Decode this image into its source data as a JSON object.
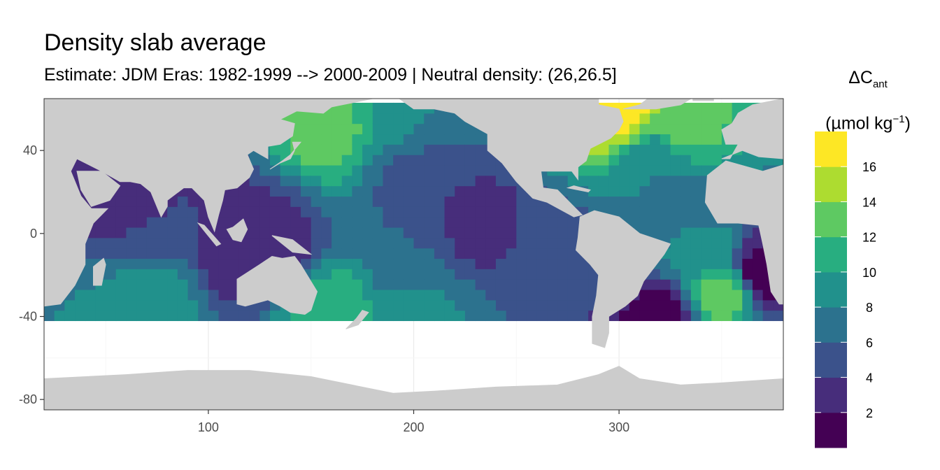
{
  "title": "Density slab average",
  "subtitle": "Estimate: JDM Eras: 1982-1999 --> 2000-2009 | Neutral density: (26,26.5]",
  "legend": {
    "title_symbol": "ΔC",
    "title_sub": "ant",
    "unit_prefix": "(µmol kg",
    "unit_sup": "−1",
    "unit_suffix": ")",
    "breaks": [
      0,
      2,
      4,
      6,
      8,
      10,
      12,
      14,
      16,
      18
    ],
    "labels": [
      "2",
      "4",
      "6",
      "8",
      "10",
      "12",
      "14",
      "16"
    ],
    "colors": [
      "#440154",
      "#472d7b",
      "#3b528b",
      "#2c728e",
      "#21918c",
      "#28ae80",
      "#5ec962",
      "#addc30",
      "#fde725"
    ]
  },
  "chart_data": {
    "type": "heatmap",
    "xlim": [
      20,
      380
    ],
    "ylim": [
      -85,
      65
    ],
    "x_ticks": [
      100,
      200,
      300
    ],
    "x_tick_labels": [
      "100",
      "200",
      "300"
    ],
    "y_ticks": [
      40,
      0,
      -40,
      -80
    ],
    "y_tick_labels": [
      "40",
      "0",
      "-40",
      "-80"
    ],
    "grid": true,
    "land_color": "#cccccc",
    "data_coverage_lat": [
      -42,
      63
    ],
    "regions": [
      {
        "lon": 60,
        "lat": 12,
        "value": 2.5
      },
      {
        "lon": 115,
        "lat": -8,
        "value": 2.0
      },
      {
        "lon": 130,
        "lat": -4,
        "value": 3.0
      },
      {
        "lon": 70,
        "lat": -5,
        "value": 5.0
      },
      {
        "lon": 70,
        "lat": -25,
        "value": 9.0
      },
      {
        "lon": 70,
        "lat": -38,
        "value": 10.0
      },
      {
        "lon": 160,
        "lat": 50,
        "value": 13.0
      },
      {
        "lon": 190,
        "lat": 52,
        "value": 10.0
      },
      {
        "lon": 200,
        "lat": 40,
        "value": 6.0
      },
      {
        "lon": 200,
        "lat": 28,
        "value": 5.0
      },
      {
        "lon": 230,
        "lat": 5,
        "value": 3.0
      },
      {
        "lon": 200,
        "lat": -15,
        "value": 6.0
      },
      {
        "lon": 200,
        "lat": -35,
        "value": 9.0
      },
      {
        "lon": 270,
        "lat": -10,
        "value": 5.0
      },
      {
        "lon": 300,
        "lat": 60,
        "value": 17.0
      },
      {
        "lon": 330,
        "lat": 50,
        "value": 13.0
      },
      {
        "lon": 320,
        "lat": 35,
        "value": 8.0
      },
      {
        "lon": 330,
        "lat": 15,
        "value": 6.5
      },
      {
        "lon": 340,
        "lat": -10,
        "value": 9.0
      },
      {
        "lon": 350,
        "lat": -28,
        "value": 13.0
      },
      {
        "lon": 370,
        "lat": -18,
        "value": 1.0
      },
      {
        "lon": 320,
        "lat": -40,
        "value": 1.5
      },
      {
        "lon": 160,
        "lat": -40,
        "value": 12.0
      }
    ]
  }
}
